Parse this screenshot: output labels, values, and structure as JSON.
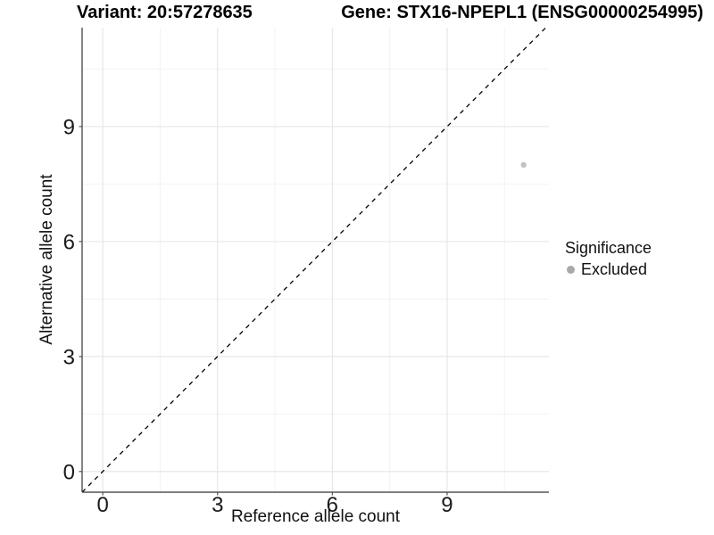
{
  "figure": {
    "title_left": "Variant: 20:57278635",
    "title_right": "Gene: STX16-NPEPL1 (ENSG00000254995)"
  },
  "chart_data": {
    "type": "scatter",
    "title": "Variant: 20:57278635",
    "subtitle": "Gene: STX16-NPEPL1 (ENSG00000254995)",
    "xlabel": "Reference allele count",
    "ylabel": "Alternative allele count",
    "xlim": [
      -0.54,
      11.66
    ],
    "ylim": [
      -0.54,
      11.58
    ],
    "x_ticks": [
      0,
      3,
      6,
      9
    ],
    "y_ticks": [
      0,
      3,
      6,
      9
    ],
    "x_minor_ticks": [
      1.5,
      4.5,
      7.5,
      10.5
    ],
    "y_minor_ticks": [
      1.5,
      4.5,
      7.5,
      10.5
    ],
    "grid": true,
    "series": [
      {
        "name": "Excluded",
        "color": "#c2c2c2",
        "points": [
          {
            "x": 11,
            "y": 8
          }
        ]
      }
    ],
    "reference_line": {
      "type": "identity",
      "slope": 1,
      "intercept": 0,
      "style": "dashed",
      "color": "#000000"
    },
    "legend": {
      "title": "Significance",
      "position": "right",
      "items": [
        {
          "label": "Excluded",
          "color": "#a9a9a9"
        }
      ]
    },
    "style": {
      "panel_bg": "#ffffff",
      "grid_major_color": "#e5e5e5",
      "grid_minor_color": "#f2f2f2",
      "axis_line_color": "#333333",
      "tick_color": "#555555",
      "tick_label_color": "#1a1a1a"
    }
  }
}
